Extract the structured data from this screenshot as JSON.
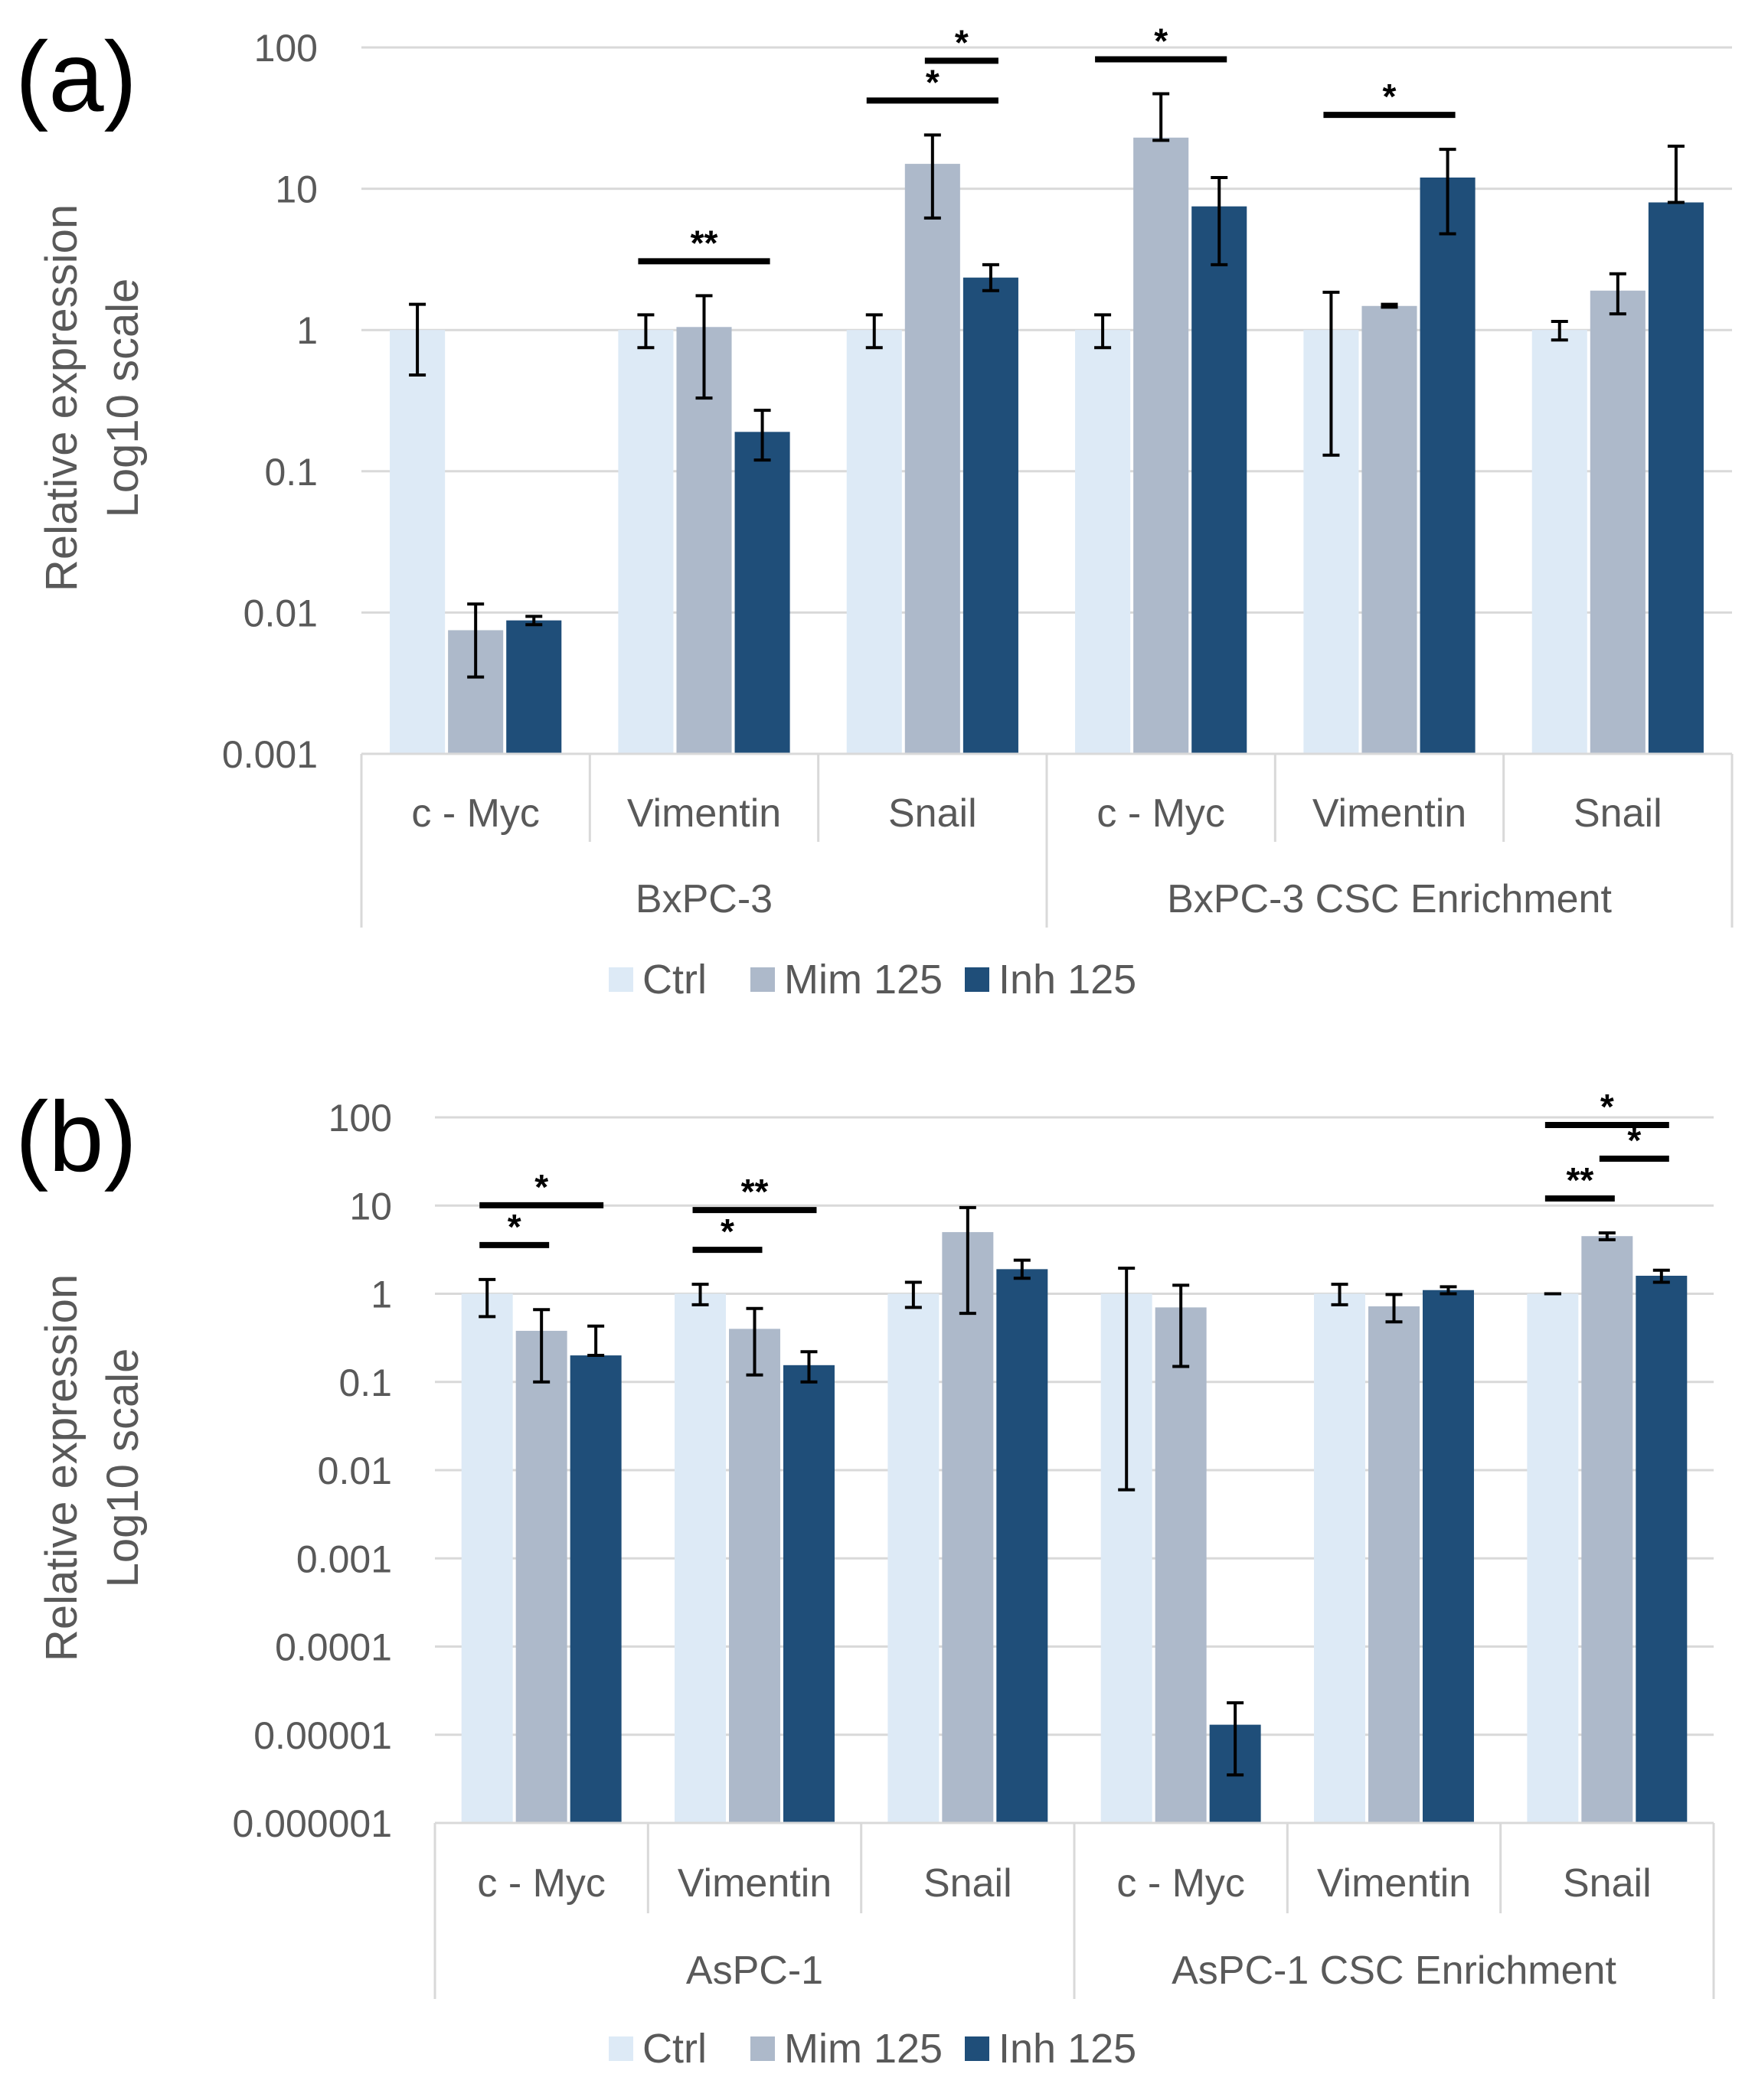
{
  "chart_data": [
    {
      "panel": "(a)",
      "type": "bar",
      "yscale": "log10",
      "ylabel_lines": [
        "Relative expression",
        "Log10 scale"
      ],
      "y_ticks": [
        "100",
        "10",
        "1",
        "0.1",
        "0.01",
        "0.001"
      ],
      "ylim": [
        0.001,
        100
      ],
      "groups": [
        {
          "name": "BxPC-3",
          "categories": [
            "c - Myc",
            "Vimentin",
            "Snail"
          ]
        },
        {
          "name": "BxPC-3 CSC Enrichment",
          "categories": [
            "c - Myc",
            "Vimentin",
            "Snail"
          ]
        }
      ],
      "series": [
        {
          "name": "Ctrl",
          "color": "#DDEAF6",
          "values": [
            1,
            1,
            1,
            1,
            1,
            1
          ],
          "err_low": [
            0.48,
            0.75,
            0.75,
            0.75,
            0.13,
            0.85
          ],
          "err_high": [
            1.52,
            1.28,
            1.28,
            1.28,
            1.85,
            1.15
          ]
        },
        {
          "name": "Mim 125",
          "color": "#ADB9CA",
          "values": [
            0.0075,
            1.05,
            15,
            23,
            1.48,
            1.9
          ],
          "err_low": [
            0.0035,
            0.33,
            6.2,
            22,
            1.45,
            1.3
          ],
          "err_high": [
            0.0115,
            1.75,
            24,
            47,
            1.52,
            2.5
          ]
        },
        {
          "name": "Inh 125",
          "color": "#1F4E79",
          "values": [
            0.0088,
            0.19,
            2.35,
            7.5,
            12,
            8
          ],
          "err_low": [
            0.0082,
            0.12,
            1.9,
            2.9,
            4.8,
            8
          ],
          "err_high": [
            0.0094,
            0.27,
            2.9,
            12,
            19,
            20
          ]
        }
      ],
      "significance": [
        {
          "cat": 1,
          "from": 0,
          "to": 2,
          "label": "**",
          "level": 0
        },
        {
          "cat": 2,
          "from": 0,
          "to": 2,
          "label": "*",
          "level": 0
        },
        {
          "cat": 2,
          "from": 1,
          "to": 2,
          "label": "*",
          "level": 1
        },
        {
          "cat": 3,
          "from": 0,
          "to": 2,
          "label": "*",
          "level": 0
        },
        {
          "cat": 4,
          "from": 0,
          "to": 2,
          "label": "*",
          "level": 0
        }
      ],
      "legend": [
        "Ctrl",
        "Mim 125",
        "Inh 125"
      ]
    },
    {
      "panel": "(b)",
      "type": "bar",
      "yscale": "log10",
      "ylabel_lines": [
        "Relative expression",
        "Log10 scale"
      ],
      "y_ticks": [
        "100",
        "10",
        "1",
        "0.1",
        "0.01",
        "0.001",
        "0.0001",
        "0.00001",
        "0.000001"
      ],
      "ylim": [
        1e-06,
        100
      ],
      "groups": [
        {
          "name": "AsPC-1",
          "categories": [
            "c - Myc",
            "Vimentin",
            "Snail"
          ]
        },
        {
          "name": "AsPC-1 CSC Enrichment",
          "categories": [
            "c - Myc",
            "Vimentin",
            "Snail"
          ]
        }
      ],
      "series": [
        {
          "name": "Ctrl",
          "color": "#DDEAF6",
          "values": [
            1,
            1,
            1,
            1,
            1,
            1
          ],
          "err_low": [
            0.55,
            0.75,
            0.7,
            0.006,
            0.75,
            1
          ],
          "err_high": [
            1.45,
            1.28,
            1.35,
            1.95,
            1.28,
            1
          ]
        },
        {
          "name": "Mim 125",
          "color": "#ADB9CA",
          "values": [
            0.38,
            0.4,
            5,
            0.7,
            0.72,
            4.5
          ],
          "err_low": [
            0.1,
            0.12,
            0.6,
            0.15,
            0.48,
            4.1
          ],
          "err_high": [
            0.66,
            0.68,
            9.5,
            1.25,
            0.98,
            4.9
          ]
        },
        {
          "name": "Inh 125",
          "color": "#1F4E79",
          "values": [
            0.2,
            0.155,
            1.9,
            1.3e-05,
            1.1,
            1.6
          ],
          "err_low": [
            0.2,
            0.1,
            1.5,
            3.5e-06,
            1.0,
            1.35
          ],
          "err_high": [
            0.43,
            0.22,
            2.4,
            2.3e-05,
            1.2,
            1.85
          ]
        }
      ],
      "significance": [
        {
          "cat": 0,
          "from": 0,
          "to": 2,
          "label": "*",
          "level": 1
        },
        {
          "cat": 0,
          "from": 0,
          "to": 1,
          "label": "*",
          "level": 0
        },
        {
          "cat": 1,
          "from": 0,
          "to": 2,
          "label": "**",
          "level": 1
        },
        {
          "cat": 1,
          "from": 0,
          "to": 1,
          "label": "*",
          "level": 0
        },
        {
          "cat": 5,
          "from": 0,
          "to": 2,
          "label": "*",
          "level": 2
        },
        {
          "cat": 5,
          "from": 1,
          "to": 2,
          "label": "*",
          "level": 1
        },
        {
          "cat": 5,
          "from": 0,
          "to": 1,
          "label": "**",
          "level": 0
        }
      ],
      "legend": [
        "Ctrl",
        "Mim 125",
        "Inh 125"
      ]
    }
  ]
}
